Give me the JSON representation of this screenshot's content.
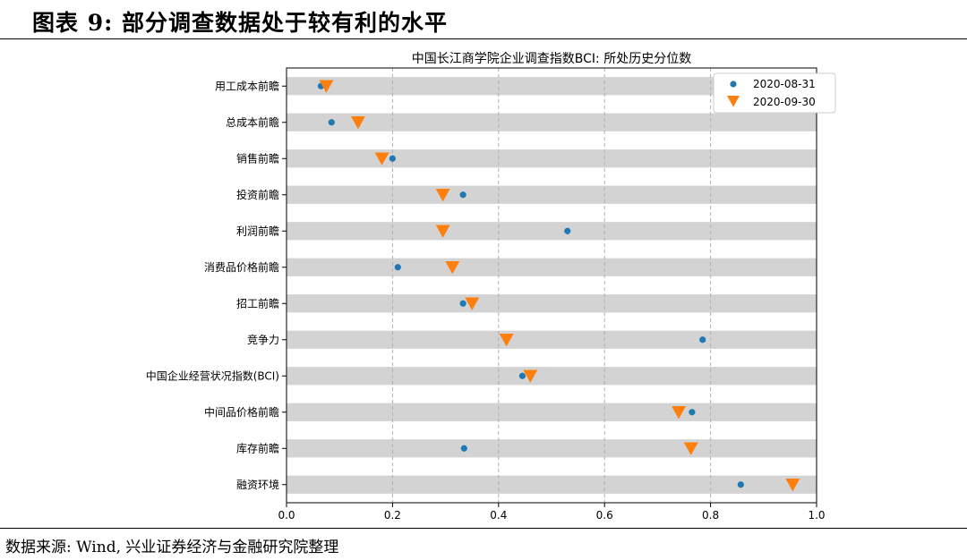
{
  "figure_title": "图表 9: 部分调查数据处于较有利的水平",
  "source": "数据来源: Wind, 兴业证券经济与金融研究院整理",
  "colors": {
    "series_a": "#1f77b4",
    "series_b": "#ff7f0e",
    "band": "#d3d3d3",
    "grid": "#b0b0b0"
  },
  "chart_data": {
    "type": "scatter",
    "title": "中国长江商学院企业调查指数BCI: 所处历史分位数",
    "xlabel": "",
    "ylabel": "",
    "xlim": [
      0.0,
      1.0
    ],
    "x_ticks": [
      "0.0",
      "0.2",
      "0.4",
      "0.6",
      "0.8",
      "1.0"
    ],
    "grid": "vertical dashed",
    "legend_position": "top-right",
    "categories": [
      "用工成本前瞻",
      "总成本前瞻",
      "销售前瞻",
      "投资前瞻",
      "利润前瞻",
      "消费品价格前瞻",
      "招工前瞻",
      "竞争力",
      "中国企业经营状况指数(BCI)",
      "中间品价格前瞻",
      "库存前瞻",
      "融资环境"
    ],
    "series": [
      {
        "name": "2020-08-31",
        "marker": "circle",
        "values": [
          0.065,
          0.085,
          0.2,
          0.333,
          0.53,
          0.21,
          0.333,
          0.785,
          0.445,
          0.765,
          0.335,
          0.857
        ]
      },
      {
        "name": "2020-09-30",
        "marker": "triangle-down",
        "values": [
          0.075,
          0.135,
          0.18,
          0.295,
          0.295,
          0.313,
          0.35,
          0.415,
          0.46,
          0.74,
          0.763,
          0.955
        ]
      }
    ]
  }
}
